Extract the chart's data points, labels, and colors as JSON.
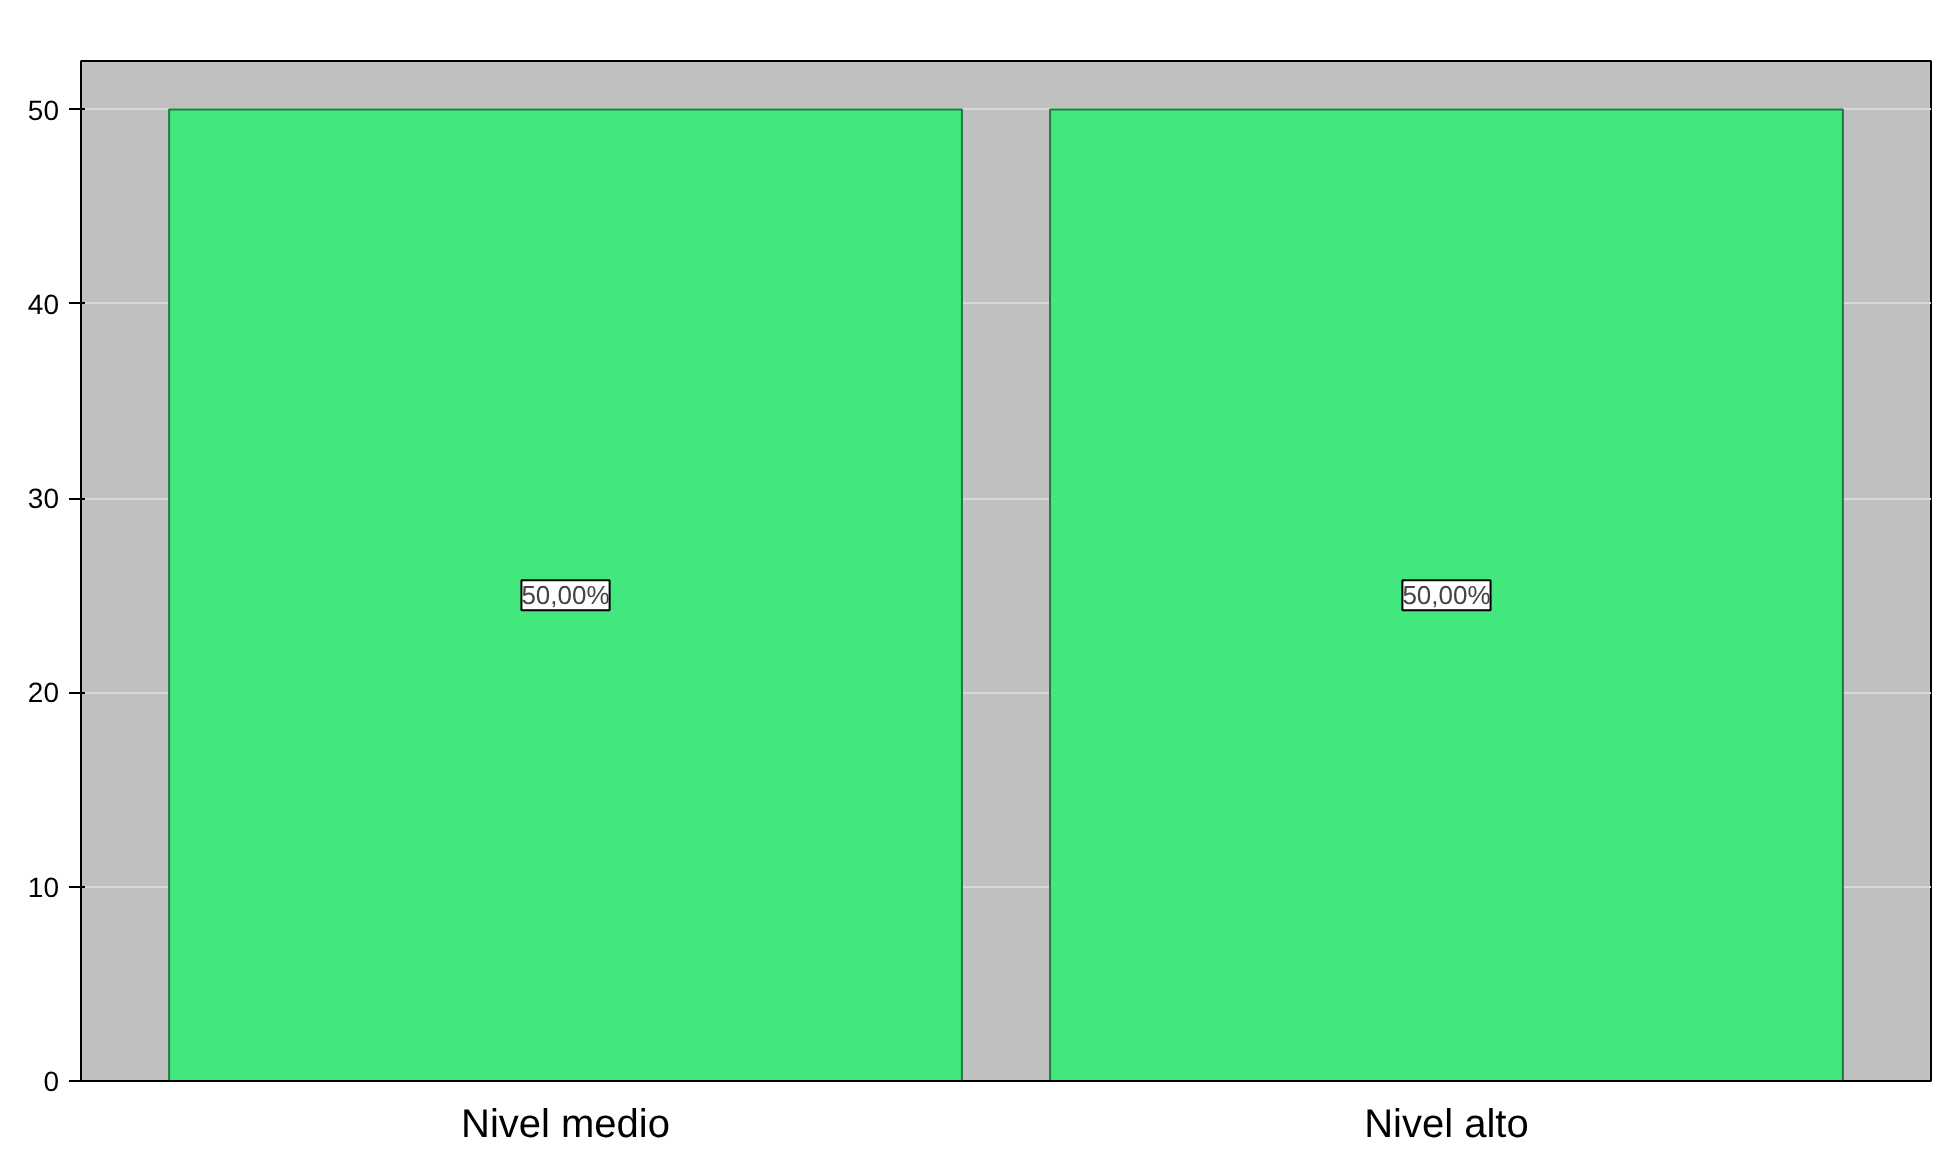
{
  "chart_data": {
    "type": "bar",
    "categories": [
      "Nivel medio",
      "Nivel alto"
    ],
    "values": [
      50,
      50
    ],
    "color": "#42e87e",
    "value_labels": [
      "50,00%",
      "50,00%"
    ],
    "ylim": [
      0,
      52.5
    ],
    "yticks": [
      0,
      10,
      20,
      30,
      40,
      50
    ],
    "grid": "y"
  }
}
